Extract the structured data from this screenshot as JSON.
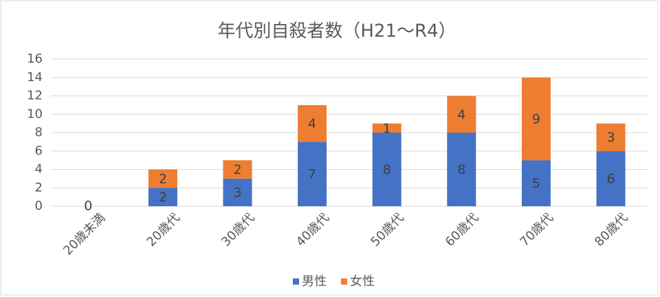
{
  "chart_data": {
    "type": "stacked_bar",
    "title": "年代別自殺者数（H21～R4）",
    "categories": [
      "20歳未満",
      "20歳代",
      "30歳代",
      "40歳代",
      "50歳代",
      "60歳代",
      "70歳代",
      "80歳代"
    ],
    "series": [
      {
        "name": "男性",
        "color": "#4472c4",
        "values": [
          0,
          2,
          3,
          7,
          8,
          8,
          5,
          6
        ]
      },
      {
        "name": "女性",
        "color": "#ed7d31",
        "values": [
          null,
          2,
          2,
          4,
          1,
          4,
          9,
          3
        ]
      }
    ],
    "ylim": [
      0,
      16
    ],
    "yticks": [
      0,
      2,
      4,
      6,
      8,
      10,
      12,
      14,
      16
    ],
    "grid": true,
    "legend": "bottom"
  }
}
